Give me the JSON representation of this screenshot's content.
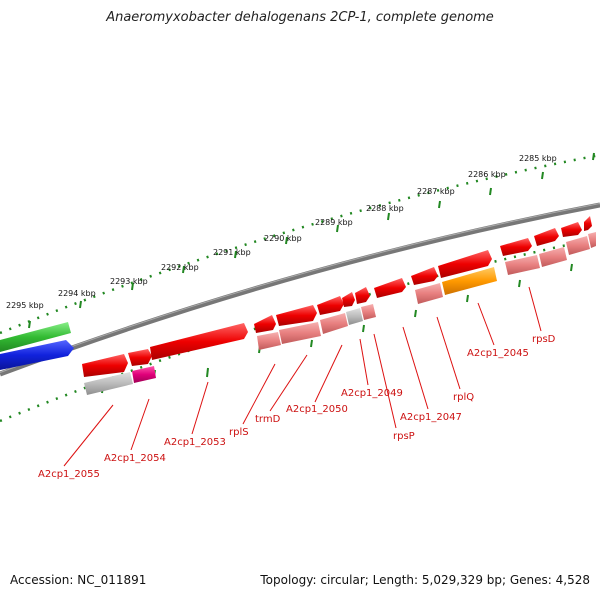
{
  "title": "Anaeromyxobacter dehalogenans 2CP-1, complete genome",
  "footer": {
    "accession": "Accession: NC_011891",
    "stats": "Topology: circular; Length: 5,029,329 bp; Genes: 4,528"
  },
  "scale_labels": [
    "2295 kbp",
    "2294 kbp",
    "2293 kbp",
    "2292 kbp",
    "2291 kbp",
    "2290 kbp",
    "2289 kbp",
    "2288 kbp",
    "2287 kbp",
    "2286 kbp",
    "2285 kbp"
  ],
  "gene_labels": [
    "A2cp1_2055",
    "A2cp1_2054",
    "A2cp1_2053",
    "rplS",
    "trmD",
    "A2cp1_2050",
    "A2cp1_2049",
    "rpsP",
    "A2cp1_2047",
    "rplQ",
    "A2cp1_2045",
    "rpsD"
  ],
  "colors": {
    "gene_red": "#ee0000",
    "gene_pink": "#e88080",
    "gene_gray": "#bbbbbb",
    "gene_magenta": "#e0007a",
    "gene_orange": "#ff9900",
    "green_track": "#33bb33",
    "blue_track": "#1122dd",
    "backbone": "#777777",
    "scale_dots": "#228822"
  }
}
